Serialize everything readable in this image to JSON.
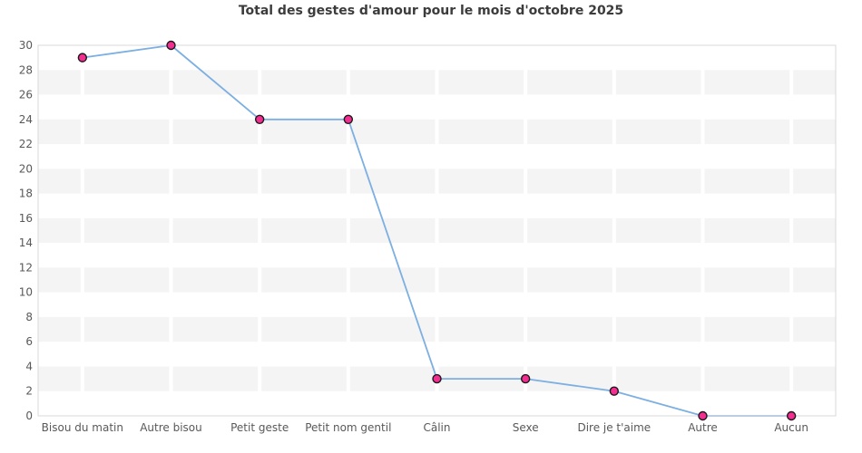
{
  "chart_data": {
    "type": "line",
    "title": "Total des gestes d'amour pour le mois d'octobre 2025",
    "categories": [
      "Bisou du matin",
      "Autre bisou",
      "Petit geste",
      "Petit nom gentil",
      "Câlin",
      "Sexe",
      "Dire je t'aime",
      "Autre",
      "Aucun"
    ],
    "values": [
      29,
      30,
      24,
      24,
      3,
      3,
      2,
      0,
      0
    ],
    "xlabel": "",
    "ylabel": "",
    "ylim": [
      0,
      30
    ],
    "yticks": [
      0,
      2,
      4,
      6,
      8,
      10,
      12,
      14,
      16,
      18,
      20,
      22,
      24,
      26,
      28,
      30
    ],
    "legend": "none",
    "grid": "alternating horizontal gray bands (2-unit tall) with white vertical gridlines at each category center",
    "colors": {
      "line": "#7cafe2",
      "marker_fill": "#f42e90",
      "marker_stroke": "#1a1a1a",
      "band": "#f4f4f4",
      "plot_border": "#d9d9d9",
      "axis_label": "#595959",
      "title": "#3c3c3c",
      "background": "#ffffff"
    }
  }
}
